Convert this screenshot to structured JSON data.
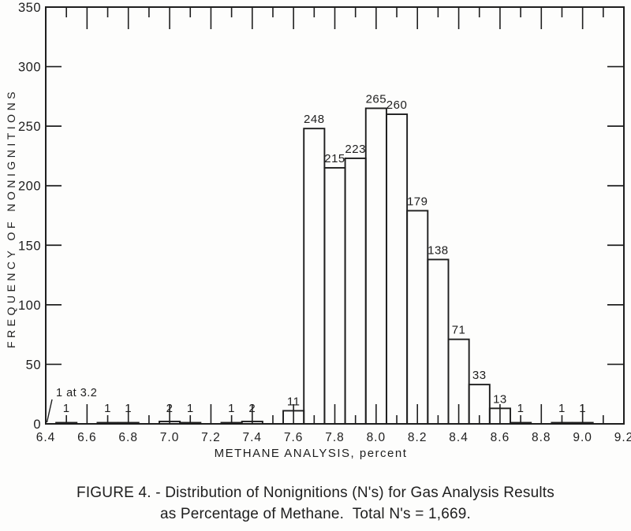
{
  "figure": {
    "background": "#fdfdfc",
    "ink_color": "#1e1e1e"
  },
  "caption": {
    "line1": "FIGURE 4. - Distribution of Nonignitions (N's) for Gas Analysis Results",
    "line2": "as Percentage of Methane.  Total N's = 1,669."
  },
  "chart_data": {
    "type": "bar",
    "title": "",
    "xlabel": "METHANE ANALYSIS,  percent",
    "ylabel": "FREQUENCY OF NONIGNITIONS",
    "xlim": [
      6.4,
      9.2
    ],
    "ylim": [
      0,
      350
    ],
    "bin_width": 0.1,
    "x_minor_tick_step": 0.1,
    "x_major_tick_step": 0.2,
    "y_tick_step": 50,
    "grid": false,
    "ticks_all_four_sides": true,
    "x_tick_labels": [
      "6.4",
      "6.6",
      "6.8",
      "7.0",
      "7.2",
      "7.4",
      "7.6",
      "7.8",
      "8.0",
      "8.2",
      "8.4",
      "8.6",
      "8.8",
      "9.0",
      "9.2"
    ],
    "y_tick_labels": [
      "0",
      "50",
      "100",
      "150",
      "200",
      "250",
      "300",
      "350"
    ],
    "bars": [
      {
        "x": 6.5,
        "value": 1,
        "label": "1"
      },
      {
        "x": 6.7,
        "value": 1,
        "label": "1"
      },
      {
        "x": 6.8,
        "value": 1,
        "label": "1"
      },
      {
        "x": 7.0,
        "value": 2,
        "label": "2"
      },
      {
        "x": 7.1,
        "value": 1,
        "label": "1"
      },
      {
        "x": 7.3,
        "value": 1,
        "label": "1"
      },
      {
        "x": 7.4,
        "value": 2,
        "label": "2"
      },
      {
        "x": 7.6,
        "value": 11,
        "label": "11"
      },
      {
        "x": 7.7,
        "value": 248,
        "label": "248"
      },
      {
        "x": 7.8,
        "value": 215,
        "label": "215"
      },
      {
        "x": 7.9,
        "value": 223,
        "label": "223"
      },
      {
        "x": 8.0,
        "value": 265,
        "label": "265"
      },
      {
        "x": 8.1,
        "value": 260,
        "label": "260"
      },
      {
        "x": 8.2,
        "value": 179,
        "label": "179"
      },
      {
        "x": 8.3,
        "value": 138,
        "label": "138"
      },
      {
        "x": 8.4,
        "value": 71,
        "label": "71"
      },
      {
        "x": 8.5,
        "value": 33,
        "label": "33"
      },
      {
        "x": 8.6,
        "value": 13,
        "label": "13"
      },
      {
        "x": 8.7,
        "value": 1,
        "label": "1"
      },
      {
        "x": 8.9,
        "value": 1,
        "label": "1"
      },
      {
        "x": 9.0,
        "value": 1,
        "label": "1"
      }
    ],
    "annotation": {
      "text": "1 at 3.2",
      "off_scale_x": 3.2,
      "off_scale_count": 1,
      "points_to_axis_x": 6.4
    },
    "total_label": "Total N's = 1,669"
  }
}
